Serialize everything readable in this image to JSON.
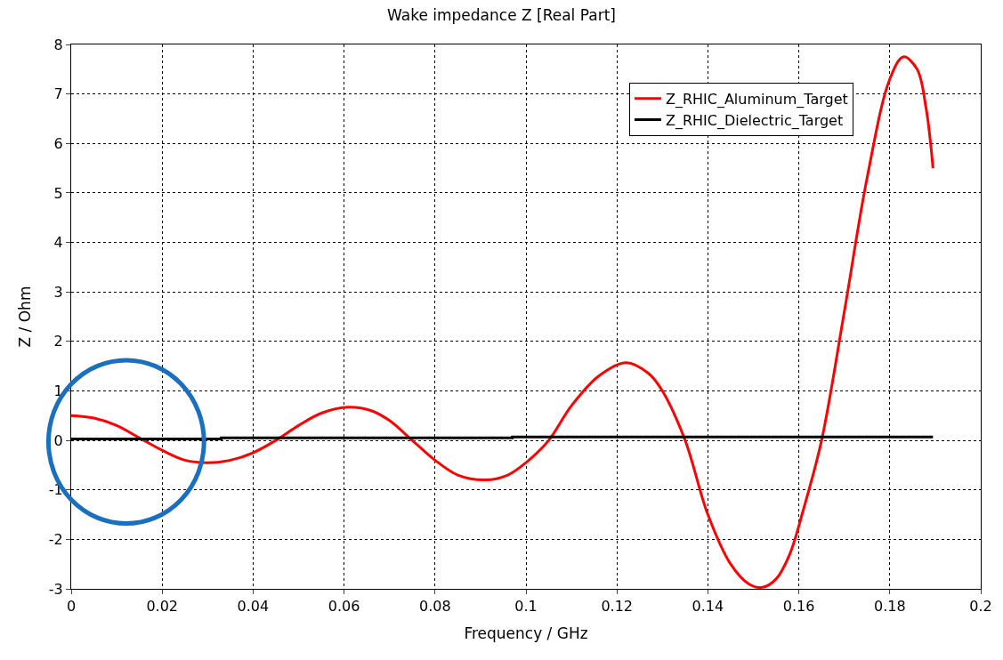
{
  "chart_data": {
    "type": "line",
    "title": "Wake impedance Z [Real Part]",
    "xlabel": "Frequency / GHz",
    "ylabel": "Z / Ohm",
    "series": [
      {
        "name": "Z_RHIC_Aluminum_Target",
        "color": "#ff0000",
        "x": [
          0,
          0.005,
          0.01,
          0.015,
          0.02,
          0.025,
          0.03,
          0.035,
          0.04,
          0.045,
          0.05,
          0.055,
          0.061,
          0.066,
          0.07,
          0.075,
          0.08,
          0.085,
          0.091,
          0.096,
          0.1,
          0.105,
          0.11,
          0.116,
          0.122,
          0.127,
          0.13,
          0.135,
          0.14,
          0.145,
          0.149,
          0.152,
          0.155,
          0.158,
          0.161,
          0.165,
          0.17,
          0.175,
          0.18,
          0.183,
          0.186,
          0.188,
          0.1895
        ],
        "values": [
          0.5,
          0.45,
          0.3,
          0.05,
          -0.2,
          -0.4,
          -0.45,
          -0.4,
          -0.25,
          0,
          0.3,
          0.55,
          0.67,
          0.6,
          0.4,
          0,
          -0.4,
          -0.7,
          -0.8,
          -0.7,
          -0.45,
          0,
          0.7,
          1.3,
          1.57,
          1.35,
          1.0,
          0,
          -1.5,
          -2.5,
          -2.9,
          -2.97,
          -2.8,
          -2.3,
          -1.4,
          0,
          2.6,
          5.3,
          7.3,
          7.75,
          7.5,
          6.7,
          5.5
        ]
      },
      {
        "name": "Z_RHIC_Dielectric_Target",
        "color": "#000000",
        "type": "step",
        "x": [
          0,
          0.033,
          0.097,
          0.1895
        ],
        "values": [
          0.03,
          0.05,
          0.07,
          0.07
        ]
      }
    ],
    "xlim": [
      0,
      0.2
    ],
    "xticks": [
      0,
      0.02,
      0.04,
      0.06,
      0.08,
      0.1,
      0.12,
      0.14,
      0.16,
      0.18,
      0.2
    ],
    "ylim": [
      -3,
      8
    ],
    "yticks": [
      -3,
      -2,
      -1,
      0,
      1,
      2,
      3,
      4,
      5,
      6,
      7,
      8
    ],
    "grid": true,
    "legend": "top right",
    "line_style": "solid",
    "marker": "none"
  }
}
